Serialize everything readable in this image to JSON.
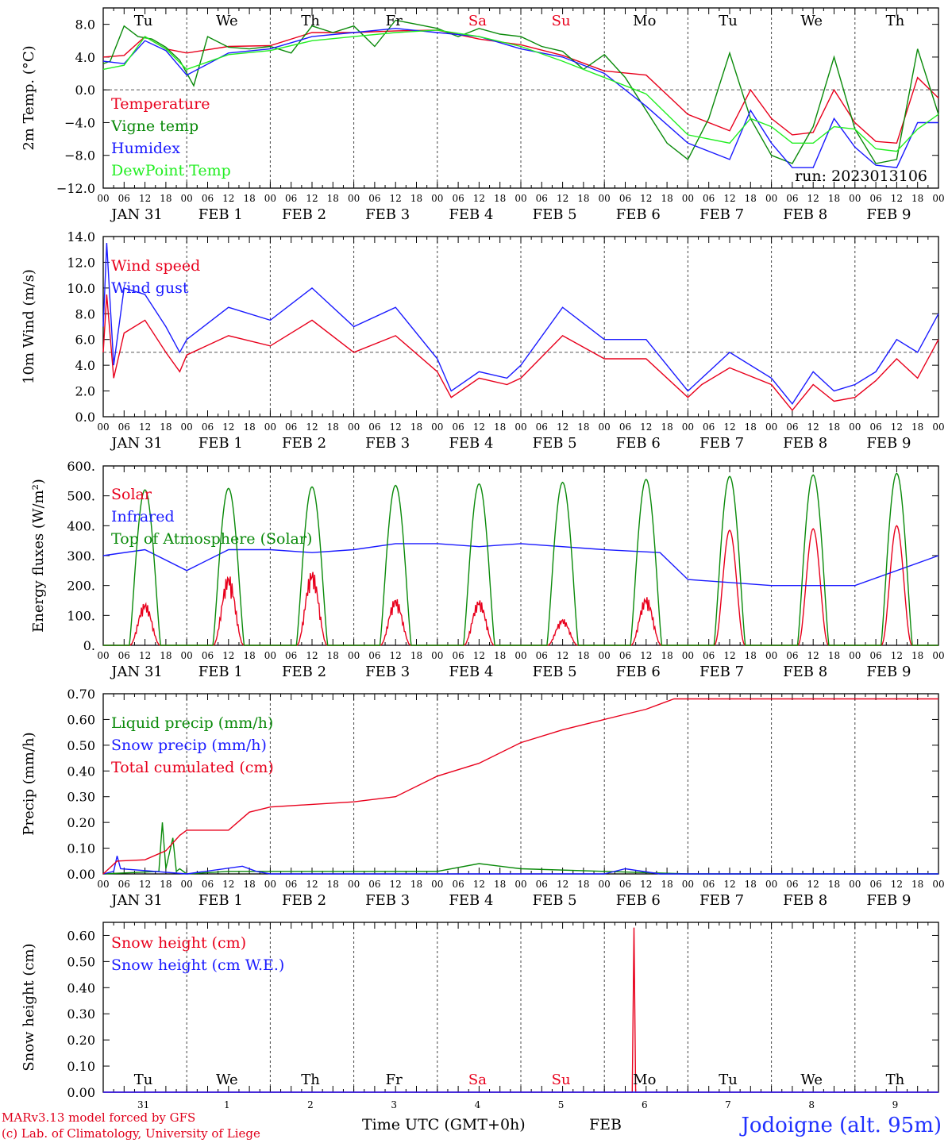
{
  "run_label": "run: 2023013106",
  "footer": {
    "model": "MARv3.13 model forced by GFS",
    "lab": "(c) Lab. of Climatology, University of Liege",
    "xlabel": "Time UTC (GMT+0h)",
    "month": "FEB",
    "station": "Jodoigne (alt. 95m)"
  },
  "colors": {
    "red": "#e8001c",
    "green": "#0a8a0a",
    "blue": "#1a1aff",
    "lightgreen": "#22ee22",
    "axis": "#000000",
    "ref": "#555555"
  },
  "days": [
    {
      "label": "Tu",
      "color": "#000000"
    },
    {
      "label": "We",
      "color": "#000000"
    },
    {
      "label": "Th",
      "color": "#000000"
    },
    {
      "label": "Fr",
      "color": "#000000"
    },
    {
      "label": "Sa",
      "color": "#e8001c"
    },
    {
      "label": "Su",
      "color": "#e8001c"
    },
    {
      "label": "Mo",
      "color": "#000000"
    },
    {
      "label": "Tu",
      "color": "#000000"
    },
    {
      "label": "We",
      "color": "#000000"
    },
    {
      "label": "Th",
      "color": "#000000"
    }
  ],
  "dates": [
    "JAN 31",
    "FEB 1",
    "FEB 2",
    "FEB 3",
    "FEB 4",
    "FEB 5",
    "FEB 6",
    "FEB 7",
    "FEB 8",
    "FEB 9"
  ],
  "day_numbers": [
    "31",
    "1",
    "2",
    "3",
    "4",
    "5",
    "6",
    "7",
    "8",
    "9"
  ],
  "hour_labels": [
    "00",
    "06",
    "12",
    "18"
  ],
  "chart_data": [
    {
      "type": "line",
      "ylabel": "2m Temp. (°C)",
      "ylim": [
        -12,
        10
      ],
      "yticks": [
        -12,
        -8,
        -4,
        0,
        4,
        8
      ],
      "ytick_labels": [
        "−12.0",
        "−8.0",
        "−4.0",
        "0.0",
        "4.0",
        "8.0"
      ],
      "ref_line": 0,
      "x_unit": "hours since Jan 31 00 UTC",
      "series": [
        {
          "name": "Temperature",
          "color": "#e8001c",
          "x": [
            0,
            6,
            12,
            18,
            24,
            36,
            48,
            60,
            72,
            84,
            96,
            108,
            120,
            132,
            144,
            156,
            168,
            180,
            186,
            192,
            198,
            204,
            210,
            216,
            222,
            228,
            234,
            240
          ],
          "y": [
            4,
            4.2,
            6.5,
            5,
            4.5,
            5.3,
            5.4,
            7,
            7,
            7.2,
            7.3,
            6.2,
            5.5,
            4.2,
            2.3,
            1.8,
            -3,
            -5,
            0,
            -3.5,
            -5.5,
            -5.2,
            0,
            -4,
            -6.3,
            -6.5,
            1.5,
            -1
          ]
        },
        {
          "name": "Vigne temp",
          "color": "#0a8a0a",
          "x": [
            0,
            2,
            6,
            10,
            14,
            18,
            22,
            26,
            30,
            36,
            42,
            48,
            54,
            60,
            66,
            72,
            78,
            84,
            90,
            96,
            102,
            108,
            114,
            120,
            126,
            132,
            138,
            144,
            150,
            156,
            162,
            168,
            174,
            180,
            186,
            192,
            198,
            204,
            210,
            216,
            222,
            228,
            234,
            240
          ],
          "y": [
            3.2,
            3.5,
            7.8,
            6.5,
            6.2,
            5.2,
            3.6,
            0.5,
            6.5,
            5.2,
            5,
            5.3,
            4.5,
            7.8,
            7,
            7.8,
            5.3,
            8.5,
            8,
            7.5,
            6.5,
            7.5,
            6.8,
            6.5,
            5.3,
            4.7,
            2.5,
            4.3,
            1.5,
            -2.5,
            -6.5,
            -8.5,
            -3.5,
            4.5,
            -3.5,
            -8,
            -9,
            -4.5,
            4,
            -4.8,
            -9,
            -8.5,
            5,
            -3
          ]
        },
        {
          "name": "Humidex",
          "color": "#1a1aff",
          "x": [
            0,
            6,
            12,
            18,
            24,
            36,
            48,
            60,
            72,
            84,
            96,
            108,
            120,
            132,
            144,
            156,
            168,
            180,
            186,
            192,
            198,
            204,
            210,
            216,
            222,
            228,
            234,
            240
          ],
          "y": [
            3.5,
            3.2,
            6,
            4.8,
            1.8,
            4.5,
            5,
            6.5,
            7,
            7.5,
            7,
            6.5,
            5,
            4,
            2,
            -2,
            -6.5,
            -8.5,
            -2.5,
            -6.5,
            -9.5,
            -9.5,
            -3.5,
            -7,
            -9.2,
            -9.5,
            -4,
            -4
          ]
        },
        {
          "name": "DewPoint Temp",
          "color": "#22ee22",
          "x": [
            0,
            6,
            12,
            18,
            24,
            36,
            48,
            60,
            72,
            84,
            96,
            108,
            120,
            132,
            144,
            156,
            168,
            180,
            186,
            192,
            198,
            204,
            210,
            216,
            222,
            228,
            234,
            240
          ],
          "y": [
            2.5,
            3,
            6.5,
            5,
            2.5,
            4.3,
            4.8,
            6,
            6.5,
            7,
            7.3,
            6.5,
            5.3,
            3.5,
            1.5,
            -0.5,
            -5.5,
            -6.5,
            -3.5,
            -4.5,
            -6.5,
            -6.5,
            -4.5,
            -4.8,
            -7.2,
            -7.5,
            -4.8,
            -3
          ]
        }
      ]
    },
    {
      "type": "line",
      "ylabel": "10m Wind (m/s)",
      "ylim": [
        0,
        14
      ],
      "yticks": [
        0,
        2,
        4,
        6,
        8,
        10,
        12,
        14
      ],
      "ytick_labels": [
        "0.0",
        "2.0",
        "4.0",
        "6.0",
        "8.0",
        "10.0",
        "12.0",
        "14.0"
      ],
      "ref_line": 5,
      "x_unit": "hours since Jan 31 00 UTC",
      "series": [
        {
          "name": "Wind speed",
          "color": "#e8001c",
          "x": [
            0,
            1,
            3,
            6,
            12,
            18,
            22,
            24,
            36,
            48,
            60,
            72,
            84,
            96,
            100,
            108,
            116,
            120,
            132,
            144,
            156,
            168,
            172,
            180,
            192,
            198,
            204,
            210,
            216,
            222,
            228,
            234,
            240
          ],
          "y": [
            5,
            9.5,
            3,
            6.5,
            7.5,
            5,
            3.5,
            4.8,
            6.3,
            5.5,
            7.5,
            5,
            6.3,
            3.5,
            1.5,
            3,
            2.5,
            3,
            6.3,
            4.5,
            4.5,
            1.5,
            2.5,
            3.8,
            2.5,
            0.5,
            2.5,
            1.2,
            1.5,
            2.8,
            4.5,
            3,
            6
          ]
        },
        {
          "name": "Wind gust",
          "color": "#1a1aff",
          "x": [
            0,
            1,
            3,
            6,
            12,
            18,
            22,
            24,
            36,
            48,
            60,
            72,
            84,
            96,
            100,
            108,
            116,
            120,
            132,
            144,
            156,
            168,
            172,
            180,
            192,
            198,
            204,
            210,
            216,
            222,
            228,
            234,
            240
          ],
          "y": [
            7,
            13.5,
            4,
            10,
            9.5,
            7,
            5,
            6,
            8.5,
            7.5,
            10,
            7,
            8.5,
            4.5,
            2,
            3.5,
            3,
            4,
            8.5,
            6,
            6,
            2,
            3,
            5,
            3,
            1,
            3.5,
            2,
            2.5,
            3.5,
            6,
            5,
            8
          ]
        }
      ]
    },
    {
      "type": "line",
      "ylabel": "Energy fluxes (W/m²)",
      "ylim": [
        0,
        600
      ],
      "yticks": [
        0,
        100,
        200,
        300,
        400,
        500,
        600
      ],
      "ytick_labels": [
        "0.",
        "100.",
        "200.",
        "300.",
        "400.",
        "500.",
        "600."
      ],
      "x_unit": "hours since Jan 31 00 UTC",
      "series": [
        {
          "name": "Solar",
          "color": "#e8001c",
          "daily_peaks": [
            145,
            240,
            255,
            160,
            155,
            90,
            165,
            385,
            390,
            400
          ]
        },
        {
          "name": "Infrared",
          "color": "#1a1aff",
          "x": [
            0,
            12,
            24,
            36,
            48,
            60,
            72,
            84,
            96,
            108,
            120,
            144,
            160,
            168,
            192,
            216,
            240
          ],
          "y": [
            300,
            320,
            250,
            320,
            320,
            310,
            320,
            340,
            340,
            330,
            340,
            320,
            310,
            220,
            200,
            200,
            300
          ]
        },
        {
          "name": "Top of Atmosphere (Solar)",
          "color": "#0a8a0a",
          "daily_peaks": [
            520,
            525,
            530,
            535,
            540,
            545,
            555,
            565,
            570,
            575
          ]
        }
      ]
    },
    {
      "type": "line",
      "ylabel": "Precip (mm/h)",
      "ylim": [
        0,
        0.7
      ],
      "yticks": [
        0,
        0.1,
        0.2,
        0.3,
        0.4,
        0.5,
        0.6,
        0.7
      ],
      "ytick_labels": [
        "0.00",
        "0.10",
        "0.20",
        "0.30",
        "0.40",
        "0.50",
        "0.60",
        "0.70"
      ],
      "x_unit": "hours since Jan 31 00 UTC",
      "series": [
        {
          "name": "Liquid precip (mm/h)",
          "color": "#0a8a0a",
          "x": [
            0,
            16,
            17,
            18,
            20,
            21,
            22,
            24,
            36,
            96,
            108,
            120,
            144,
            168,
            240
          ],
          "y": [
            0,
            0.01,
            0.2,
            0.02,
            0.14,
            0.01,
            0.02,
            0,
            0.01,
            0.01,
            0.04,
            0.02,
            0.01,
            0,
            0
          ]
        },
        {
          "name": "Snow precip (mm/h)",
          "color": "#1a1aff",
          "x": [
            0,
            3,
            4,
            5,
            24,
            40,
            44,
            48,
            144,
            150,
            160,
            240
          ],
          "y": [
            0,
            0.01,
            0.07,
            0.02,
            0,
            0.03,
            0.01,
            0,
            0,
            0.02,
            0,
            0
          ]
        },
        {
          "name": "Total cumulated (cm)",
          "color": "#e8001c",
          "x": [
            0,
            4,
            12,
            18,
            22,
            24,
            36,
            42,
            48,
            60,
            72,
            84,
            96,
            108,
            120,
            132,
            144,
            156,
            164,
            168,
            240
          ],
          "y": [
            0,
            0.05,
            0.055,
            0.09,
            0.15,
            0.17,
            0.17,
            0.24,
            0.26,
            0.27,
            0.28,
            0.3,
            0.38,
            0.43,
            0.51,
            0.56,
            0.6,
            0.64,
            0.68,
            0.68,
            0.68
          ]
        }
      ]
    },
    {
      "type": "line",
      "ylabel": "Snow height (cm)",
      "ylim": [
        0,
        0.65
      ],
      "yticks": [
        0,
        0.1,
        0.2,
        0.3,
        0.4,
        0.5,
        0.6
      ],
      "ytick_labels": [
        "0.00",
        "0.10",
        "0.20",
        "0.30",
        "0.40",
        "0.50",
        "0.60"
      ],
      "x_unit": "hours since Jan 31 00 UTC",
      "series": [
        {
          "name": "Snow height (cm)",
          "color": "#e8001c",
          "x": [
            0,
            152,
            152.5,
            153,
            240
          ],
          "y": [
            0,
            0,
            0.63,
            0,
            0
          ]
        },
        {
          "name": "Snow height (cm W.E.)",
          "color": "#1a1aff",
          "x": [
            0,
            240
          ],
          "y": [
            0,
            0
          ]
        }
      ]
    }
  ]
}
